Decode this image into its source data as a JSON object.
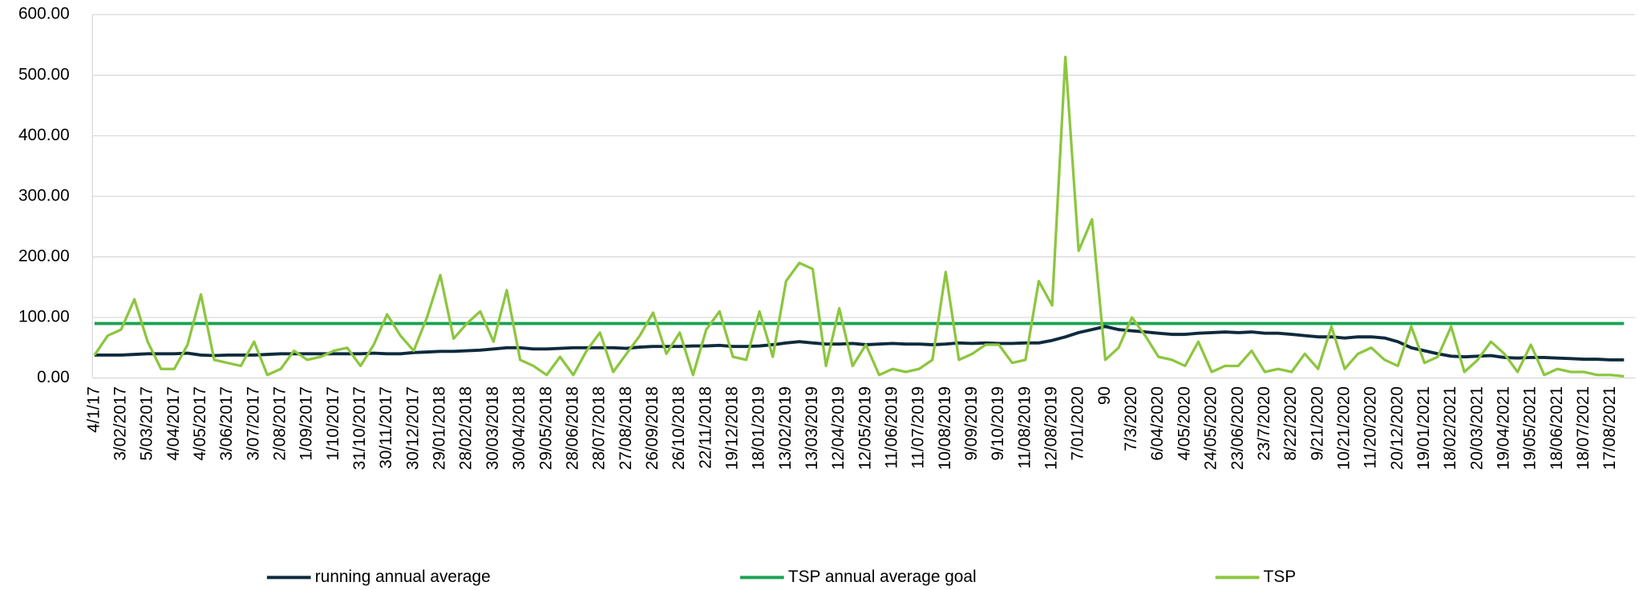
{
  "chart_data": {
    "type": "line",
    "categories": [
      "4/1/17",
      null,
      "3/02/2017",
      null,
      "5/03/2017",
      null,
      "4/04/2017",
      null,
      "4/05/2017",
      null,
      "3/06/2017",
      null,
      "3/07/2017",
      null,
      "2/08/2017",
      null,
      "1/09/2017",
      null,
      "1/10/2017",
      null,
      "31/10/2017",
      null,
      "30/11/2017",
      null,
      "30/12/2017",
      null,
      "29/01/2018",
      null,
      "28/02/2018",
      null,
      "30/03/2018",
      null,
      "30/04/2018",
      null,
      "29/05/2018",
      null,
      "28/06/2018",
      null,
      "28/07/2018",
      null,
      "27/08/2018",
      null,
      "26/09/2018",
      null,
      "26/10/2018",
      null,
      "22/11/2018",
      null,
      "19/12/2018",
      null,
      "18/01/2019",
      null,
      "13/02/2019",
      null,
      "13/03/2019",
      null,
      "12/04/2019",
      null,
      "12/05/2019",
      null,
      "11/06/2019",
      null,
      "11/07/2019",
      null,
      "10/08/2019",
      null,
      "9/09/2019",
      null,
      "9/10/2019",
      null,
      "11/08/2019",
      null,
      "12/08/2019",
      null,
      "7/01/2020",
      null,
      "90",
      null,
      "7/3/2020",
      null,
      "6/04/2020",
      null,
      "4/05/2020",
      null,
      "24/05/2020",
      null,
      "23/06/2020",
      null,
      "23/7/2020",
      null,
      "8/22/2020",
      null,
      "9/21/2020",
      null,
      "10/21/2020",
      null,
      "11/20/2020",
      null,
      "20/12/2020",
      null,
      "19/01/2021",
      null,
      "18/02/2021",
      null,
      "20/03/2021",
      null,
      "19/04/2021",
      null,
      "19/05/2021",
      null,
      "18/06/2021",
      null,
      "18/07/2021",
      null,
      "17/08/2021",
      null
    ],
    "series": [
      {
        "name": "running annual average",
        "color": "#0f2b3d",
        "width": 3,
        "values": [
          38,
          38,
          38,
          39,
          40,
          40,
          40,
          41,
          38,
          37,
          38,
          38,
          38,
          39,
          40,
          40,
          40,
          40,
          40,
          40,
          40,
          41,
          40,
          40,
          42,
          43,
          44,
          44,
          45,
          46,
          48,
          50,
          50,
          48,
          48,
          49,
          50,
          50,
          50,
          50,
          49,
          51,
          52,
          52,
          52,
          53,
          53,
          54,
          52,
          52,
          53,
          55,
          58,
          60,
          58,
          56,
          56,
          57,
          55,
          56,
          57,
          56,
          56,
          55,
          56,
          58,
          57,
          58,
          57,
          57,
          58,
          58,
          62,
          68,
          75,
          80,
          85,
          80,
          78,
          76,
          74,
          72,
          72,
          74,
          75,
          76,
          75,
          76,
          74,
          74,
          72,
          70,
          68,
          68,
          66,
          68,
          68,
          66,
          60,
          50,
          45,
          40,
          36,
          35,
          36,
          37,
          34,
          33,
          34,
          34,
          33,
          32,
          31,
          31,
          30,
          30
        ]
      },
      {
        "name": "TSP annual average goal",
        "color": "#1aa353",
        "width": 3,
        "values": [
          90,
          90,
          90,
          90,
          90,
          90,
          90,
          90,
          90,
          90,
          90,
          90,
          90,
          90,
          90,
          90,
          90,
          90,
          90,
          90,
          90,
          90,
          90,
          90,
          90,
          90,
          90,
          90,
          90,
          90,
          90,
          90,
          90,
          90,
          90,
          90,
          90,
          90,
          90,
          90,
          90,
          90,
          90,
          90,
          90,
          90,
          90,
          90,
          90,
          90,
          90,
          90,
          90,
          90,
          90,
          90,
          90,
          90,
          90,
          90,
          90,
          90,
          90,
          90,
          90,
          90,
          90,
          90,
          90,
          90,
          90,
          90,
          90,
          90,
          90,
          90,
          90,
          90,
          90,
          90,
          90,
          90,
          90,
          90,
          90,
          90,
          90,
          90,
          90,
          90,
          90,
          90,
          90,
          90,
          90,
          90,
          90,
          90,
          90,
          90,
          90,
          90,
          90,
          90,
          90,
          90,
          90,
          90,
          90,
          90,
          90,
          90,
          90,
          90,
          90,
          90
        ]
      },
      {
        "name": "TSP",
        "color": "#8cc63f",
        "width": 2.5,
        "values": [
          38,
          70,
          80,
          130,
          60,
          15,
          15,
          55,
          138,
          30,
          25,
          20,
          60,
          5,
          15,
          45,
          30,
          35,
          45,
          50,
          20,
          55,
          105,
          70,
          45,
          100,
          170,
          65,
          90,
          110,
          60,
          145,
          30,
          20,
          5,
          35,
          5,
          45,
          75,
          10,
          40,
          70,
          108,
          40,
          75,
          5,
          80,
          110,
          35,
          30,
          110,
          35,
          160,
          190,
          180,
          20,
          115,
          20,
          55,
          5,
          15,
          10,
          15,
          30,
          175,
          30,
          40,
          55,
          55,
          25,
          30,
          160,
          120,
          530,
          210,
          262,
          30,
          50,
          100,
          70,
          35,
          30,
          20,
          60,
          10,
          20,
          20,
          45,
          10,
          15,
          10,
          40,
          15,
          85,
          15,
          40,
          50,
          30,
          20,
          85,
          25,
          35,
          85,
          10,
          30,
          60,
          40,
          10,
          55,
          5,
          15,
          10,
          10,
          5,
          5,
          3
        ]
      }
    ],
    "ylim": [
      0,
      600
    ],
    "yticks": [
      {
        "value": 0,
        "label": "0.00"
      },
      {
        "value": 100,
        "label": "100.00"
      },
      {
        "value": 200,
        "label": "200.00"
      },
      {
        "value": 300,
        "label": "300.00"
      },
      {
        "value": 400,
        "label": "400.00"
      },
      {
        "value": 500,
        "label": "500.00"
      },
      {
        "value": 600,
        "label": "600.00"
      }
    ],
    "grid": true,
    "legend": "bottom"
  }
}
